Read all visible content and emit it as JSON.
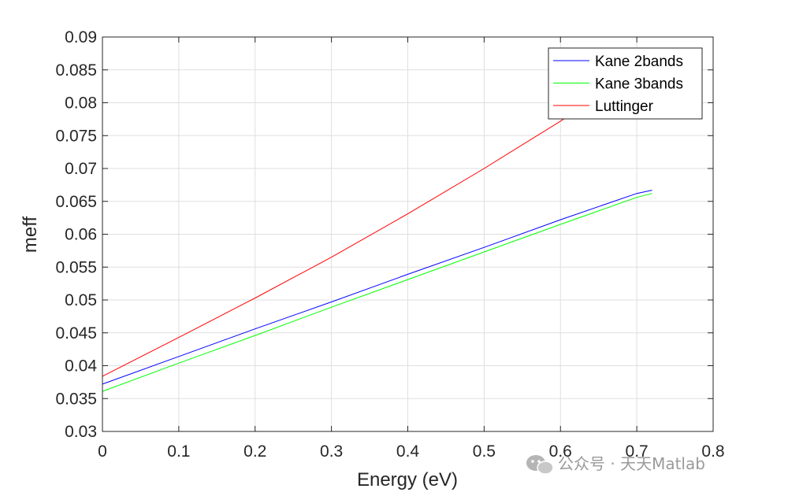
{
  "chart_data": {
    "type": "line",
    "title": "",
    "xlabel": "Energy (eV)",
    "ylabel": "meff",
    "xlim": [
      0,
      0.8
    ],
    "ylim": [
      0.03,
      0.09
    ],
    "xticks": [
      0,
      0.1,
      0.2,
      0.3,
      0.4,
      0.5,
      0.6,
      0.7,
      0.8
    ],
    "xtick_labels": [
      "0",
      "0.1",
      "0.2",
      "0.3",
      "0.4",
      "0.5",
      "0.6",
      "0.7",
      "0.8"
    ],
    "yticks": [
      0.03,
      0.035,
      0.04,
      0.045,
      0.05,
      0.055,
      0.06,
      0.065,
      0.07,
      0.075,
      0.08,
      0.085,
      0.09
    ],
    "ytick_labels": [
      "0.03",
      "0.035",
      "0.04",
      "0.045",
      "0.05",
      "0.055",
      "0.06",
      "0.065",
      "0.07",
      "0.075",
      "0.08",
      "0.085",
      "0.09"
    ],
    "grid": true,
    "legend_position": "top-right",
    "series": [
      {
        "name": "Kane 2bands",
        "color": "#0000ff",
        "x": [
          0,
          0.1,
          0.2,
          0.3,
          0.4,
          0.5,
          0.6,
          0.7,
          0.72
        ],
        "y": [
          0.0372,
          0.0414,
          0.0456,
          0.0497,
          0.0539,
          0.058,
          0.0622,
          0.0662,
          0.0667
        ]
      },
      {
        "name": "Kane 3bands",
        "color": "#00ff00",
        "x": [
          0,
          0.1,
          0.2,
          0.3,
          0.4,
          0.5,
          0.6,
          0.7,
          0.72
        ],
        "y": [
          0.0361,
          0.0404,
          0.0446,
          0.0489,
          0.0531,
          0.0573,
          0.0615,
          0.0656,
          0.0662
        ]
      },
      {
        "name": "Luttinger",
        "color": "#ff0000",
        "x": [
          0,
          0.1,
          0.2,
          0.3,
          0.4,
          0.5,
          0.6,
          0.7,
          0.72
        ],
        "y": [
          0.0384,
          0.0443,
          0.0503,
          0.0565,
          0.0631,
          0.07,
          0.0772,
          0.0848,
          0.0864
        ]
      }
    ]
  },
  "watermark": {
    "text": "公众号 · 天天Matlab",
    "icon": "wechat-icon"
  }
}
